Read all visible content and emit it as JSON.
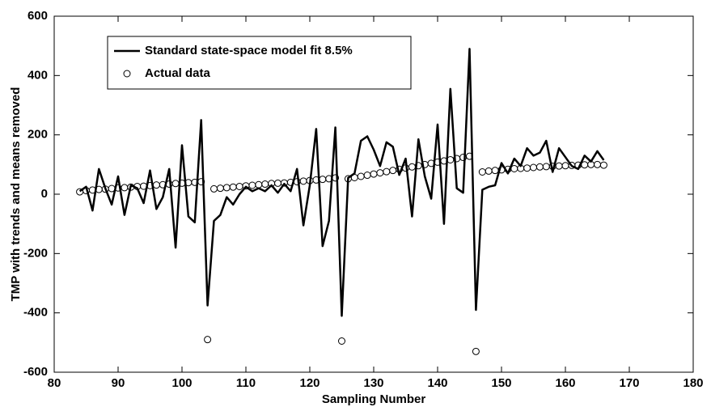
{
  "chart_data": {
    "type": "line",
    "x_label": "Sampling Number",
    "y_label": "TMP with trends and means removed",
    "x": [
      84,
      85,
      86,
      87,
      88,
      89,
      90,
      91,
      92,
      93,
      94,
      95,
      96,
      97,
      98,
      99,
      100,
      101,
      102,
      103,
      104,
      105,
      106,
      107,
      108,
      109,
      110,
      111,
      112,
      113,
      114,
      115,
      116,
      117,
      118,
      119,
      120,
      121,
      122,
      123,
      124,
      125,
      126,
      127,
      128,
      129,
      130,
      131,
      132,
      133,
      134,
      135,
      136,
      137,
      138,
      139,
      140,
      141,
      142,
      143,
      144,
      145,
      146,
      147,
      148,
      149,
      150,
      151,
      152,
      153,
      154,
      155,
      156,
      157,
      158,
      159,
      160,
      161,
      162,
      163,
      164,
      165,
      166
    ],
    "series": [
      {
        "name": "Standard state-space model fit 8.5%",
        "color": "#000000",
        "kind": "line",
        "values": [
          10,
          25,
          -55,
          85,
          20,
          -35,
          60,
          -70,
          30,
          20,
          -30,
          80,
          -50,
          -10,
          85,
          -180,
          165,
          -75,
          -95,
          250,
          -375,
          -90,
          -70,
          -10,
          -35,
          0,
          25,
          10,
          20,
          10,
          30,
          5,
          35,
          10,
          85,
          -105,
          30,
          220,
          -175,
          -90,
          225,
          -410,
          55,
          70,
          180,
          195,
          150,
          95,
          175,
          160,
          65,
          120,
          -75,
          185,
          60,
          -15,
          235,
          -100,
          355,
          20,
          5,
          490,
          -390,
          15,
          25,
          30,
          105,
          70,
          120,
          95,
          155,
          130,
          140,
          180,
          75,
          155,
          125,
          95,
          85,
          130,
          110,
          145,
          115
        ]
      },
      {
        "name": "Actual data",
        "color": "#000000",
        "kind": "scatter",
        "values": [
          8,
          12,
          14,
          16,
          17,
          19,
          21,
          22,
          24,
          26,
          27,
          29,
          31,
          32,
          34,
          36,
          37,
          39,
          40,
          42,
          -490,
          18,
          20,
          22,
          24,
          26,
          28,
          30,
          32,
          34,
          36,
          37,
          38,
          40,
          42,
          44,
          46,
          48,
          50,
          52,
          55,
          -495,
          52,
          56,
          60,
          64,
          68,
          72,
          76,
          80,
          84,
          88,
          92,
          96,
          100,
          104,
          108,
          112,
          116,
          120,
          124,
          128,
          -530,
          75,
          78,
          80,
          82,
          84,
          86,
          87,
          88,
          90,
          92,
          93,
          94,
          95,
          96,
          97,
          98,
          99,
          100,
          100,
          98
        ]
      }
    ],
    "xlim": [
      80,
      180
    ],
    "xticks": [
      80,
      90,
      100,
      110,
      120,
      130,
      140,
      150,
      160,
      170,
      180
    ],
    "ylim": [
      -600,
      600
    ],
    "yticks": [
      -600,
      -400,
      -200,
      0,
      200,
      400,
      600
    ],
    "grid": false,
    "legend": "upper left"
  }
}
